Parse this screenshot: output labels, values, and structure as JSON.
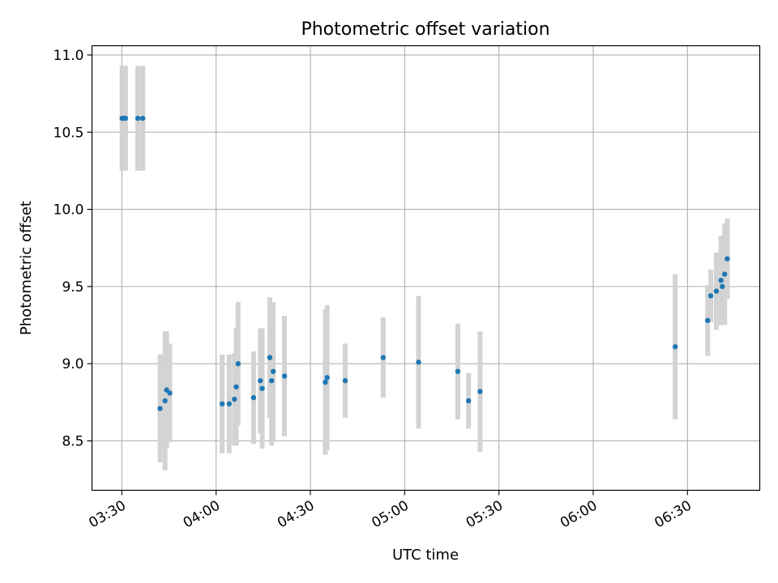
{
  "chart_data": {
    "type": "scatter",
    "title": "Photometric offset variation",
    "xlabel": "UTC time",
    "ylabel": "Photometric offset",
    "x_ticks": [
      "03:30",
      "04:00",
      "04:30",
      "05:00",
      "05:30",
      "06:00",
      "06:30"
    ],
    "y_ticks": [
      "8.5",
      "9.0",
      "9.5",
      "10.0",
      "10.5",
      "11.0"
    ],
    "xlim": [
      "03:20:30",
      "06:53:00"
    ],
    "ylim": [
      8.18,
      11.06
    ],
    "grid": true,
    "marker_color": "#1f77b4",
    "errorbar_color": "#d3d3d3",
    "points": [
      {
        "t": "03:30:05",
        "y": 10.59,
        "err": 0.34
      },
      {
        "t": "03:30:35",
        "y": 10.59,
        "err": 0.34
      },
      {
        "t": "03:31:10",
        "y": 10.59,
        "err": 0.34
      },
      {
        "t": "03:35:05",
        "y": 10.59,
        "err": 0.34
      },
      {
        "t": "03:36:40",
        "y": 10.59,
        "err": 0.34
      },
      {
        "t": "03:42:10",
        "y": 8.71,
        "err": 0.35
      },
      {
        "t": "03:43:45",
        "y": 8.76,
        "err": 0.45
      },
      {
        "t": "03:44:15",
        "y": 8.83,
        "err": 0.38
      },
      {
        "t": "03:45:15",
        "y": 8.81,
        "err": 0.32
      },
      {
        "t": "04:01:55",
        "y": 8.74,
        "err": 0.32
      },
      {
        "t": "04:04:10",
        "y": 8.74,
        "err": 0.32
      },
      {
        "t": "04:05:50",
        "y": 8.77,
        "err": 0.3
      },
      {
        "t": "04:06:25",
        "y": 8.85,
        "err": 0.38
      },
      {
        "t": "04:07:00",
        "y": 9.0,
        "err": 0.4
      },
      {
        "t": "04:11:55",
        "y": 8.78,
        "err": 0.3
      },
      {
        "t": "04:14:05",
        "y": 8.89,
        "err": 0.34
      },
      {
        "t": "04:14:40",
        "y": 8.84,
        "err": 0.39
      },
      {
        "t": "04:17:05",
        "y": 9.04,
        "err": 0.39
      },
      {
        "t": "04:17:40",
        "y": 8.89,
        "err": 0.42
      },
      {
        "t": "04:18:10",
        "y": 8.95,
        "err": 0.45
      },
      {
        "t": "04:21:45",
        "y": 8.92,
        "err": 0.39
      },
      {
        "t": "04:34:45",
        "y": 8.88,
        "err": 0.47
      },
      {
        "t": "04:35:20",
        "y": 8.91,
        "err": 0.47
      },
      {
        "t": "04:41:05",
        "y": 8.89,
        "err": 0.24
      },
      {
        "t": "04:53:10",
        "y": 9.04,
        "err": 0.26
      },
      {
        "t": "05:04:25",
        "y": 9.01,
        "err": 0.43
      },
      {
        "t": "05:16:55",
        "y": 8.95,
        "err": 0.31
      },
      {
        "t": "05:20:20",
        "y": 8.76,
        "err": 0.18
      },
      {
        "t": "05:24:00",
        "y": 8.82,
        "err": 0.39
      },
      {
        "t": "06:26:05",
        "y": 9.11,
        "err": 0.47
      },
      {
        "t": "06:36:25",
        "y": 9.28,
        "err": 0.23
      },
      {
        "t": "06:37:25",
        "y": 9.44,
        "err": 0.17
      },
      {
        "t": "06:39:10",
        "y": 9.47,
        "err": 0.25
      },
      {
        "t": "06:40:40",
        "y": 9.54,
        "err": 0.29
      },
      {
        "t": "06:41:05",
        "y": 9.5,
        "err": 0.25
      },
      {
        "t": "06:41:50",
        "y": 9.58,
        "err": 0.33
      },
      {
        "t": "06:42:40",
        "y": 9.68,
        "err": 0.26
      }
    ]
  }
}
